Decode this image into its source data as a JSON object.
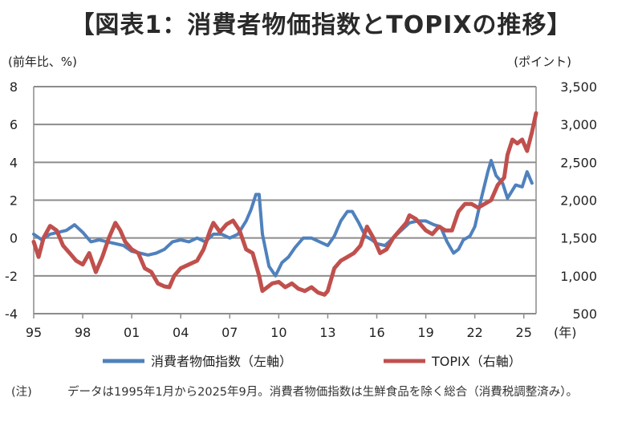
{
  "title": "【図表1：消費者物価指数とTOPIXの推移】",
  "note": {
    "label": "(注)",
    "text": "データは1995年1月から2025年9月。消費者物価指数は生鮮食品を除く総合（消費税調整済み）。"
  },
  "chart_data": {
    "type": "line",
    "left_axis": {
      "unit_label": "(前年比、%)",
      "range": [
        -4,
        8
      ],
      "ticks": [
        8,
        6,
        4,
        2,
        0,
        -2,
        -4
      ]
    },
    "right_axis": {
      "unit_label": "(ポイント)",
      "range": [
        500,
        3500
      ],
      "ticks": [
        "3,500",
        "3,000",
        "2,500",
        "2,000",
        "1,500",
        "1,000",
        "500"
      ]
    },
    "x_axis": {
      "unit_label": "(年)",
      "range": [
        1995.0,
        2025.75
      ],
      "tick_labels": [
        "95",
        "98",
        "01",
        "04",
        "07",
        "10",
        "13",
        "16",
        "19",
        "22",
        "25"
      ],
      "tick_years": [
        1995,
        1998,
        2001,
        2004,
        2007,
        2010,
        2013,
        2016,
        2019,
        2022,
        2025
      ]
    },
    "grid": "horizontal",
    "legend_position": "bottom",
    "series": [
      {
        "name": "消費者物価指数（左軸）",
        "axis": "left",
        "color": "#4f81bd",
        "x": [
          1995.0,
          1995.5,
          1996.0,
          1996.5,
          1997.0,
          1997.5,
          1998.0,
          1998.5,
          1999.0,
          1999.5,
          2000.0,
          2000.5,
          2001.0,
          2001.5,
          2002.0,
          2002.5,
          2003.0,
          2003.5,
          2004.0,
          2004.5,
          2005.0,
          2005.5,
          2006.0,
          2006.5,
          2007.0,
          2007.5,
          2008.0,
          2008.3,
          2008.6,
          2008.8,
          2009.0,
          2009.4,
          2009.8,
          2010.2,
          2010.6,
          2011.0,
          2011.5,
          2012.0,
          2012.5,
          2013.0,
          2013.4,
          2013.8,
          2014.2,
          2014.5,
          2014.9,
          2015.3,
          2015.7,
          2016.0,
          2016.5,
          2017.0,
          2017.5,
          2018.0,
          2018.5,
          2019.0,
          2019.5,
          2019.9,
          2020.3,
          2020.7,
          2021.0,
          2021.3,
          2021.7,
          2022.0,
          2022.4,
          2022.8,
          2023.0,
          2023.3,
          2023.7,
          2024.0,
          2024.5,
          2024.9,
          2025.2,
          2025.5
        ],
        "values": [
          0.2,
          -0.1,
          0.2,
          0.3,
          0.4,
          0.7,
          0.3,
          -0.2,
          -0.1,
          -0.2,
          -0.3,
          -0.4,
          -0.7,
          -0.8,
          -0.9,
          -0.8,
          -0.6,
          -0.2,
          -0.1,
          -0.2,
          0.0,
          -0.2,
          0.2,
          0.2,
          0.0,
          0.2,
          0.9,
          1.5,
          2.3,
          2.3,
          0.2,
          -1.5,
          -2.0,
          -1.3,
          -1.0,
          -0.5,
          0.0,
          0.0,
          -0.2,
          -0.4,
          0.1,
          0.9,
          1.4,
          1.4,
          0.8,
          0.1,
          -0.1,
          -0.3,
          -0.4,
          0.0,
          0.4,
          0.8,
          0.9,
          0.9,
          0.7,
          0.6,
          -0.2,
          -0.8,
          -0.6,
          -0.1,
          0.1,
          0.6,
          2.1,
          3.5,
          4.1,
          3.3,
          2.9,
          2.1,
          2.8,
          2.7,
          3.5,
          2.9
        ]
      },
      {
        "name": "TOPIX（右軸）",
        "axis": "right",
        "color": "#c0504d",
        "x": [
          1995.0,
          1995.3,
          1995.6,
          1996.0,
          1996.4,
          1996.8,
          1997.2,
          1997.6,
          1998.0,
          1998.4,
          1998.8,
          1999.2,
          1999.6,
          2000.0,
          2000.3,
          2000.6,
          2001.0,
          2001.4,
          2001.8,
          2002.2,
          2002.6,
          2003.0,
          2003.3,
          2003.6,
          2004.0,
          2004.5,
          2005.0,
          2005.4,
          2005.8,
          2006.0,
          2006.4,
          2006.8,
          2007.2,
          2007.6,
          2008.0,
          2008.4,
          2008.8,
          2009.0,
          2009.3,
          2009.6,
          2010.0,
          2010.4,
          2010.8,
          2011.2,
          2011.6,
          2012.0,
          2012.4,
          2012.8,
          2013.0,
          2013.4,
          2013.8,
          2014.2,
          2014.6,
          2015.0,
          2015.4,
          2015.8,
          2016.2,
          2016.6,
          2017.0,
          2017.4,
          2017.8,
          2018.0,
          2018.4,
          2018.8,
          2019.0,
          2019.4,
          2019.8,
          2020.2,
          2020.6,
          2021.0,
          2021.4,
          2021.8,
          2022.2,
          2022.6,
          2023.0,
          2023.4,
          2023.8,
          2024.0,
          2024.3,
          2024.6,
          2024.9,
          2025.2,
          2025.5,
          2025.75
        ],
        "values": [
          1450,
          1250,
          1500,
          1660,
          1600,
          1400,
          1300,
          1200,
          1150,
          1300,
          1050,
          1250,
          1500,
          1700,
          1600,
          1450,
          1350,
          1300,
          1100,
          1050,
          900,
          860,
          850,
          1000,
          1100,
          1150,
          1200,
          1350,
          1600,
          1700,
          1580,
          1680,
          1730,
          1600,
          1350,
          1300,
          1000,
          800,
          850,
          900,
          920,
          850,
          900,
          830,
          800,
          850,
          780,
          750,
          800,
          1100,
          1200,
          1250,
          1300,
          1400,
          1650,
          1500,
          1300,
          1350,
          1500,
          1600,
          1700,
          1800,
          1750,
          1650,
          1600,
          1550,
          1650,
          1600,
          1600,
          1850,
          1950,
          1950,
          1900,
          1950,
          2000,
          2200,
          2300,
          2600,
          2800,
          2750,
          2800,
          2650,
          2900,
          3150
        ]
      }
    ]
  }
}
